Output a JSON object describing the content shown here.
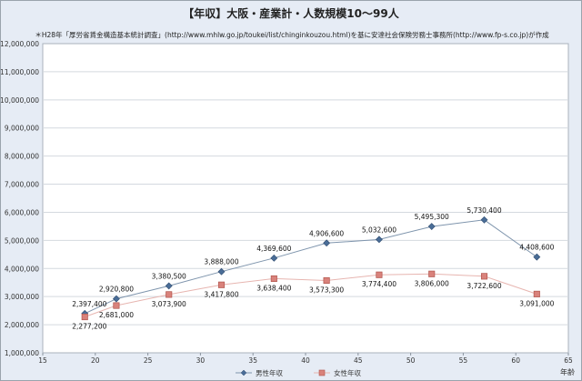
{
  "chart_data": {
    "type": "line",
    "title": "【年収】大阪・産業計・人数規模10～99人",
    "subtitle": "＊H28年「厚労省賃金構造基本統計調査」(http://www.mhlw.go.jp/toukei/list/chinginkouzou.html)を基に安達社会保険労務士事務所(http://www.fp-s.co.jp)が作成",
    "xlabel": "年齢",
    "ylabel": "",
    "xlim": [
      15,
      65
    ],
    "ylim": [
      1000000,
      12000000
    ],
    "xticks": [
      15,
      20,
      25,
      30,
      35,
      40,
      45,
      50,
      55,
      60,
      65
    ],
    "yticks": [
      1000000,
      2000000,
      3000000,
      4000000,
      5000000,
      6000000,
      7000000,
      8000000,
      9000000,
      10000000,
      11000000,
      12000000
    ],
    "ytick_labels": [
      "1,000,000",
      "2,000,000",
      "3,000,000",
      "4,000,000",
      "5,000,000",
      "6,000,000",
      "7,000,000",
      "8,000,000",
      "9,000,000",
      "10,000,000",
      "11,000,000",
      "12,000,000"
    ],
    "grid": "horizontal",
    "legend_position": "bottom",
    "x": [
      19,
      22,
      27,
      32,
      37,
      42,
      47,
      52,
      57,
      62
    ],
    "series": [
      {
        "name": "男性年収",
        "color": "#4a6d97",
        "marker": "diamond",
        "values": [
          2397400,
          2920800,
          3380500,
          3888000,
          4369600,
          4906600,
          5032600,
          5495300,
          5730400,
          4408600
        ],
        "labels": [
          "2,397,400",
          "2,920,800",
          "3,380,500",
          "3,888,000",
          "4,369,600",
          "4,906,600",
          "5,032,600",
          "5,495,300",
          "5,730,400",
          "4,408,600"
        ]
      },
      {
        "name": "女性年収",
        "color": "#d9827b",
        "marker": "square",
        "values": [
          2277200,
          2681000,
          3073900,
          3417800,
          3638400,
          3573300,
          3774400,
          3806000,
          3722600,
          3091000
        ],
        "labels": [
          "2,277,200",
          "2,681,000",
          "3,073,900",
          "3,417,800",
          "3,638,400",
          "3,573,300",
          "3,774,400",
          "3,806,000",
          "3,722,600",
          "3,091,000"
        ]
      }
    ]
  }
}
